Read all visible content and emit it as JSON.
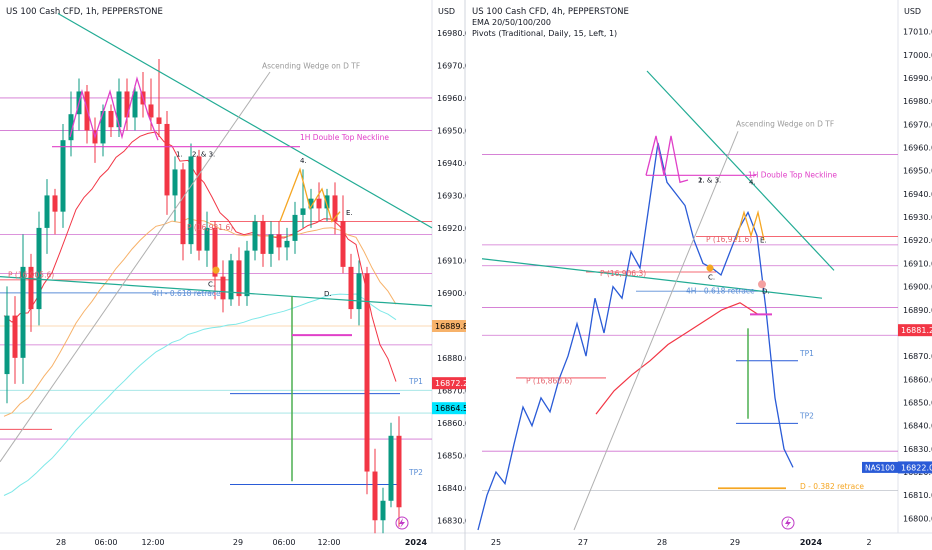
{
  "colors": {
    "up": "#089981",
    "down": "#f23645",
    "trend": "#22ab94",
    "magenta": "#e040c8",
    "pivot_line": "#d070d0",
    "blue_line": "#5b8ed6",
    "ema20": "#f23645",
    "ema50": "#f7b26a",
    "ema100": "#7fe8e8",
    "wedge": "#b0b0b0",
    "green_drop": "#4caf50",
    "orange": "#f5a623",
    "price_line": "#2a5bd7"
  },
  "left": {
    "header": "US 100 Cash CFD, 1h, PEPPERSTONE",
    "currency": "USD",
    "price_badges": [
      {
        "value": "16889.8",
        "y": 16889.8,
        "bg": "#f7b26a",
        "fg": "#000000"
      },
      {
        "value": "16872.2",
        "y": 16872.2,
        "bg": "#f23645",
        "fg": "#ffffff"
      },
      {
        "value": "16864.5",
        "y": 16864.5,
        "bg": "#00e5ff",
        "fg": "#000000"
      }
    ],
    "labels": {
      "wedge": "Ascending Wedge on D TF",
      "neckline": "1H Double Top Neckline",
      "retrace": "4H - 0.618 retrace",
      "pivot1": "P (16,905.6)",
      "pivot2": "P (16,921.6)",
      "tp1": "TP1",
      "tp2": "TP2",
      "m1": "1.",
      "m23": "2. & 3.",
      "m4": "4.",
      "mC": "C.",
      "mD": "D.",
      "mE": "E."
    }
  },
  "right": {
    "header": "US 100 Cash CFD, 4h, PEPPERSTONE",
    "ema_label": "EMA 20/50/100/200",
    "pivots_label": "Pivots (Traditional, Daily, 15, Left, 1)",
    "currency": "USD",
    "price_badges": [
      {
        "value": "16881.2",
        "y": 16881.2,
        "bg": "#f23645",
        "fg": "#ffffff"
      },
      {
        "value": "16822.0",
        "y": 16822.0,
        "bg": "#2a5bd7",
        "fg": "#ffffff"
      }
    ],
    "symbol_tag": "NAS100",
    "labels": {
      "wedge": "Ascending Wedge on D TF",
      "neckline": "1H Double Top Neckline",
      "retrace": "4H - 0.618 retrace",
      "pivot1": "P (16,906.3)",
      "pivot2": "P (16,921.6)",
      "pivot3": "P (16,860.6)",
      "tp1": "TP1",
      "tp2": "TP2",
      "d382": "D - 0.382 retrace",
      "m1": "1.",
      "m23": "2. & 3.",
      "m4": "4.",
      "mC": "C.",
      "mD": "D.",
      "mE": "E."
    }
  },
  "chart_data": [
    {
      "type": "candlestick",
      "title": "US 100 Cash CFD, 1h, PEPPERSTONE",
      "ylim": [
        16827,
        16984
      ],
      "ticks_y": [
        16830,
        16840,
        16850,
        16860,
        16870,
        16880,
        16890,
        16900,
        16910,
        16920,
        16930,
        16940,
        16950,
        16960,
        16970,
        16980
      ],
      "ticks_x": [
        "28",
        "06:00",
        "12:00",
        "29",
        "06:00",
        "12:00",
        "2024"
      ],
      "candles": [
        {
          "o": 16875,
          "h": 16902,
          "l": 16866,
          "c": 16893
        },
        {
          "o": 16893,
          "h": 16899,
          "l": 16872,
          "c": 16880
        },
        {
          "o": 16880,
          "h": 16918,
          "l": 16872,
          "c": 16908
        },
        {
          "o": 16908,
          "h": 16912,
          "l": 16888,
          "c": 16895
        },
        {
          "o": 16895,
          "h": 16925,
          "l": 16890,
          "c": 16920
        },
        {
          "o": 16920,
          "h": 16935,
          "l": 16912,
          "c": 16930
        },
        {
          "o": 16930,
          "h": 16932,
          "l": 16918,
          "c": 16925
        },
        {
          "o": 16925,
          "h": 16952,
          "l": 16920,
          "c": 16947
        },
        {
          "o": 16947,
          "h": 16962,
          "l": 16942,
          "c": 16955
        },
        {
          "o": 16955,
          "h": 16966,
          "l": 16950,
          "c": 16962
        },
        {
          "o": 16962,
          "h": 16964,
          "l": 16946,
          "c": 16950
        },
        {
          "o": 16950,
          "h": 16954,
          "l": 16940,
          "c": 16946
        },
        {
          "o": 16946,
          "h": 16958,
          "l": 16942,
          "c": 16956
        },
        {
          "o": 16956,
          "h": 16958,
          "l": 16948,
          "c": 16951
        },
        {
          "o": 16951,
          "h": 16966,
          "l": 16948,
          "c": 16962
        },
        {
          "o": 16962,
          "h": 16966,
          "l": 16950,
          "c": 16954
        },
        {
          "o": 16954,
          "h": 16964,
          "l": 16950,
          "c": 16962
        },
        {
          "o": 16962,
          "h": 16968,
          "l": 16954,
          "c": 16958
        },
        {
          "o": 16958,
          "h": 16966,
          "l": 16950,
          "c": 16954
        },
        {
          "o": 16954,
          "h": 16972,
          "l": 16948,
          "c": 16952
        },
        {
          "o": 16952,
          "h": 16956,
          "l": 16924,
          "c": 16930
        },
        {
          "o": 16930,
          "h": 16942,
          "l": 16922,
          "c": 16938
        },
        {
          "o": 16938,
          "h": 16940,
          "l": 16910,
          "c": 16915
        },
        {
          "o": 16915,
          "h": 16946,
          "l": 16912,
          "c": 16942
        },
        {
          "o": 16942,
          "h": 16944,
          "l": 16910,
          "c": 16913
        },
        {
          "o": 16913,
          "h": 16925,
          "l": 16908,
          "c": 16920
        },
        {
          "o": 16920,
          "h": 16922,
          "l": 16898,
          "c": 16905
        },
        {
          "o": 16905,
          "h": 16910,
          "l": 16894,
          "c": 16898
        },
        {
          "o": 16898,
          "h": 16912,
          "l": 16896,
          "c": 16910
        },
        {
          "o": 16910,
          "h": 16914,
          "l": 16896,
          "c": 16899
        },
        {
          "o": 16899,
          "h": 16916,
          "l": 16896,
          "c": 16913
        },
        {
          "o": 16913,
          "h": 16924,
          "l": 16910,
          "c": 16922
        },
        {
          "o": 16922,
          "h": 16924,
          "l": 16908,
          "c": 16912
        },
        {
          "o": 16912,
          "h": 16922,
          "l": 16908,
          "c": 16918
        },
        {
          "o": 16918,
          "h": 16922,
          "l": 16910,
          "c": 16914
        },
        {
          "o": 16914,
          "h": 16920,
          "l": 16910,
          "c": 16916
        },
        {
          "o": 16916,
          "h": 16928,
          "l": 16912,
          "c": 16924
        },
        {
          "o": 16924,
          "h": 16938,
          "l": 16920,
          "c": 16926
        },
        {
          "o": 16926,
          "h": 16932,
          "l": 16920,
          "c": 16929
        },
        {
          "o": 16929,
          "h": 16934,
          "l": 16922,
          "c": 16926
        },
        {
          "o": 16926,
          "h": 16932,
          "l": 16922,
          "c": 16930
        },
        {
          "o": 16930,
          "h": 16934,
          "l": 16918,
          "c": 16922
        },
        {
          "o": 16922,
          "h": 16930,
          "l": 16906,
          "c": 16908
        },
        {
          "o": 16908,
          "h": 16912,
          "l": 16892,
          "c": 16895
        },
        {
          "o": 16895,
          "h": 16910,
          "l": 16890,
          "c": 16906
        },
        {
          "o": 16906,
          "h": 16908,
          "l": 16838,
          "c": 16845
        },
        {
          "o": 16845,
          "h": 16852,
          "l": 16826,
          "c": 16830
        },
        {
          "o": 16830,
          "h": 16840,
          "l": 16826,
          "c": 16836
        },
        {
          "o": 16836,
          "h": 16860,
          "l": 16834,
          "c": 16856
        },
        {
          "o": 16856,
          "h": 16862,
          "l": 16828,
          "c": 16834
        }
      ]
    },
    {
      "type": "line",
      "title": "US 100 Cash CFD, 4h, PEPPERSTONE",
      "ylim": [
        16795,
        17015
      ],
      "ticks_y": [
        16800,
        16810,
        16820,
        16830,
        16840,
        16850,
        16860,
        16870,
        16880,
        16890,
        16900,
        16910,
        16920,
        16930,
        16940,
        16950,
        16960,
        16970,
        16980,
        16990,
        17000,
        17010
      ],
      "ticks_x": [
        "25",
        "27",
        "28",
        "29",
        "2024",
        "2"
      ],
      "series": [
        {
          "values": [
            16795,
            16810,
            16820,
            16815,
            16832,
            16848,
            16840,
            16852,
            16846,
            16860,
            16870,
            16884,
            16870,
            16895,
            16880,
            16900,
            16895,
            16915,
            16908,
            16935,
            16962,
            16945,
            16940,
            16935,
            16920,
            16910,
            16908,
            16905,
            16915,
            16925,
            16932,
            16922,
            16890,
            16852,
            16830,
            16822
          ]
        },
        {
          "values": [
            16845,
            16855,
            16862,
            16868,
            16875,
            16880,
            16885,
            16890,
            16893,
            16888
          ]
        }
      ]
    }
  ]
}
